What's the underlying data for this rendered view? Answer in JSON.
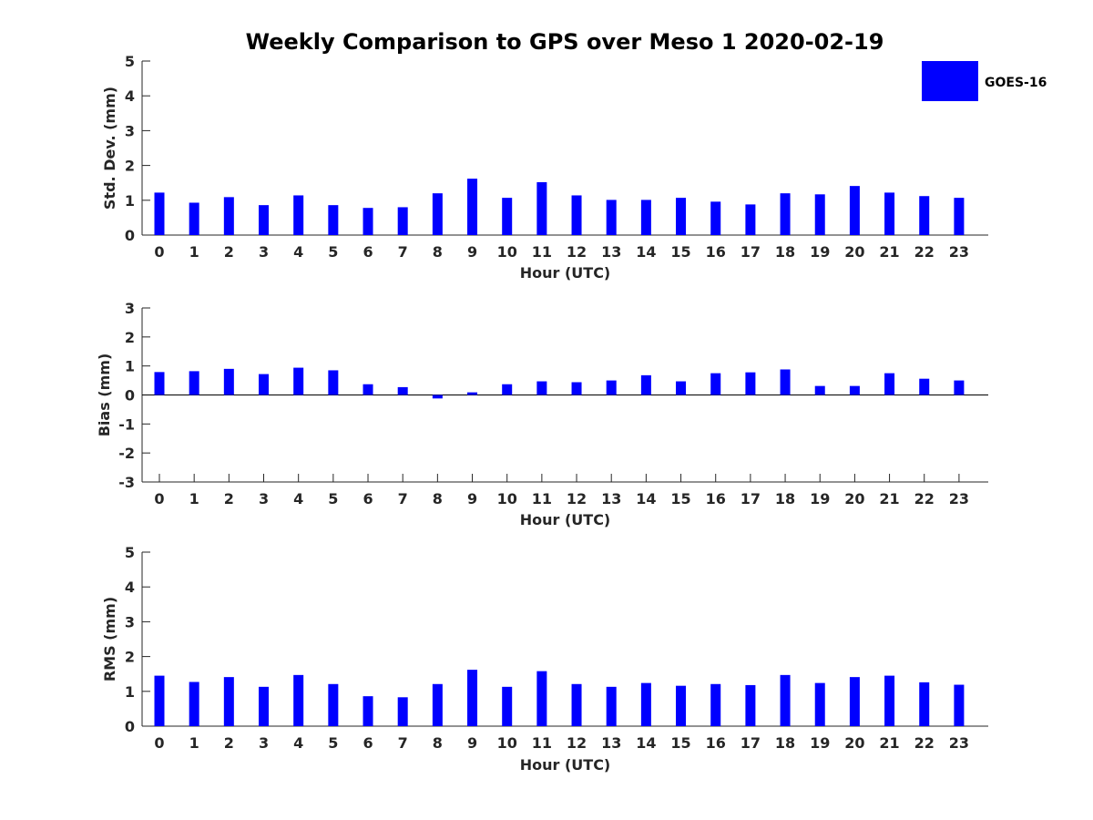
{
  "title": "Weekly Comparison to GPS over Meso 1 2020-02-19",
  "legend": {
    "label": "GOES-16",
    "color": "#0000ff",
    "placement": "top-right"
  },
  "chart_data": [
    {
      "type": "bar",
      "xlabel": "Hour (UTC)",
      "ylabel": "Std. Dev. (mm)",
      "ylim": [
        0,
        5
      ],
      "yticks": [
        0,
        1,
        2,
        3,
        4,
        5
      ],
      "categories": [
        "0",
        "1",
        "2",
        "3",
        "4",
        "5",
        "6",
        "7",
        "8",
        "9",
        "10",
        "11",
        "12",
        "13",
        "14",
        "15",
        "16",
        "17",
        "18",
        "19",
        "20",
        "21",
        "22",
        "23"
      ],
      "series": [
        {
          "name": "GOES-16",
          "values": [
            1.22,
            0.93,
            1.09,
            0.86,
            1.14,
            0.86,
            0.78,
            0.8,
            1.2,
            1.62,
            1.07,
            1.52,
            1.14,
            1.01,
            1.01,
            1.07,
            0.96,
            0.88,
            1.2,
            1.17,
            1.41,
            1.22,
            1.12,
            1.07
          ]
        }
      ],
      "grid": false
    },
    {
      "type": "bar",
      "xlabel": "Hour (UTC)",
      "ylabel": "Bias (mm)",
      "ylim": [
        -3,
        3
      ],
      "yticks": [
        -3,
        -2,
        -1,
        0,
        1,
        2,
        3
      ],
      "categories": [
        "0",
        "1",
        "2",
        "3",
        "4",
        "5",
        "6",
        "7",
        "8",
        "9",
        "10",
        "11",
        "12",
        "13",
        "14",
        "15",
        "16",
        "17",
        "18",
        "19",
        "20",
        "21",
        "22",
        "23"
      ],
      "series": [
        {
          "name": "GOES-16",
          "values": [
            0.79,
            0.82,
            0.9,
            0.72,
            0.94,
            0.85,
            0.37,
            0.27,
            -0.12,
            0.09,
            0.37,
            0.47,
            0.44,
            0.5,
            0.68,
            0.47,
            0.75,
            0.78,
            0.88,
            0.31,
            0.31,
            0.75,
            0.56,
            0.5
          ]
        }
      ],
      "grid": false
    },
    {
      "type": "bar",
      "xlabel": "Hour (UTC)",
      "ylabel": "RMS (mm)",
      "ylim": [
        0,
        5
      ],
      "yticks": [
        0,
        1,
        2,
        3,
        4,
        5
      ],
      "categories": [
        "0",
        "1",
        "2",
        "3",
        "4",
        "5",
        "6",
        "7",
        "8",
        "9",
        "10",
        "11",
        "12",
        "13",
        "14",
        "15",
        "16",
        "17",
        "18",
        "19",
        "20",
        "21",
        "22",
        "23"
      ],
      "series": [
        {
          "name": "GOES-16",
          "values": [
            1.45,
            1.27,
            1.41,
            1.13,
            1.47,
            1.21,
            0.86,
            0.83,
            1.21,
            1.62,
            1.13,
            1.58,
            1.21,
            1.13,
            1.24,
            1.16,
            1.21,
            1.18,
            1.47,
            1.24,
            1.41,
            1.45,
            1.26,
            1.19
          ]
        }
      ],
      "grid": false
    }
  ]
}
